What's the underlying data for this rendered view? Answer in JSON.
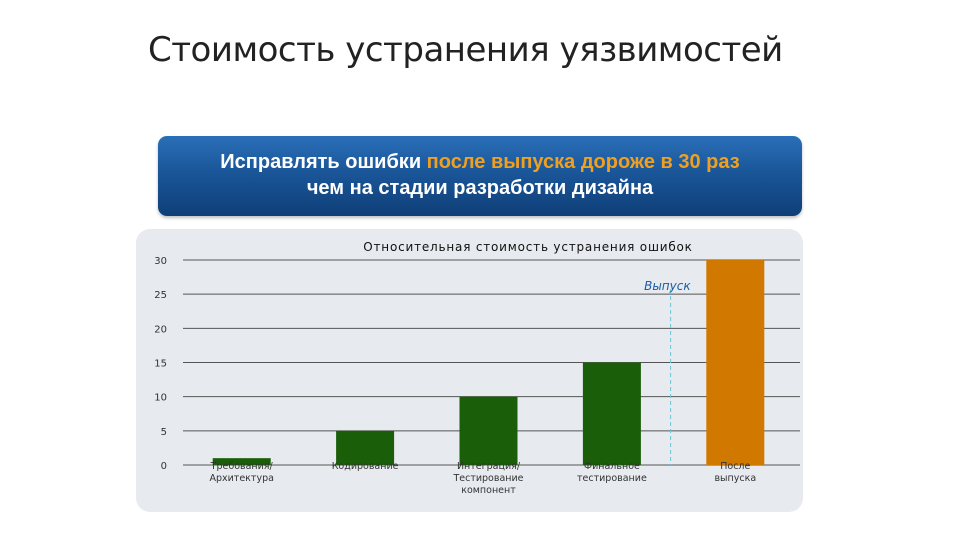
{
  "page": {
    "title": "Стоимость устранения уязвимостей"
  },
  "banner": {
    "line1_part1": "Исправлять ошибки ",
    "line1_highlight": "после выпуска дороже в 30 раз",
    "line2": "чем на стадии разработки дизайна",
    "highlight_color": "#f0a020"
  },
  "chart_data": {
    "type": "bar",
    "title": "Относительная стоимость устранения ошибок",
    "categories": [
      [
        "Требования/",
        "Архитектура"
      ],
      [
        "Кодирование"
      ],
      [
        "Интеграция/",
        "Тестирование",
        "компонент"
      ],
      [
        "Финальное",
        "тестирование"
      ],
      [
        "После",
        "выпуска"
      ]
    ],
    "values": [
      1,
      5,
      10,
      15,
      30
    ],
    "bar_colors": [
      "#1a5e0a",
      "#1a5e0a",
      "#1a5e0a",
      "#1a5e0a",
      "#d07800"
    ],
    "ylim": [
      0,
      30
    ],
    "yticks": [
      0,
      5,
      10,
      15,
      20,
      25,
      30
    ],
    "grid": true,
    "xlabel": "",
    "ylabel": "",
    "annotation": {
      "text": "Выпуск",
      "color": "#1a5da8"
    }
  }
}
